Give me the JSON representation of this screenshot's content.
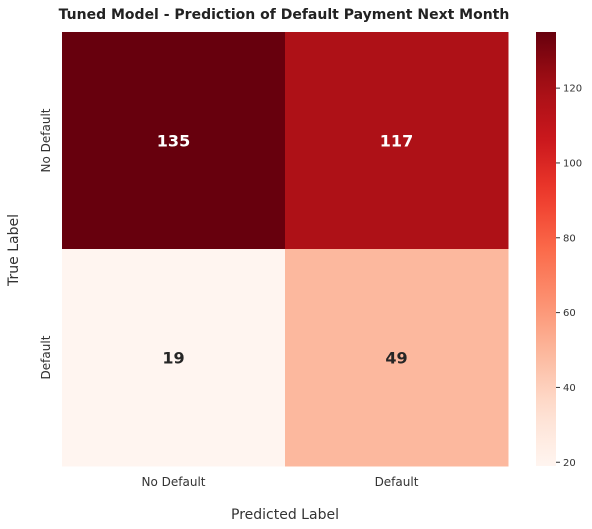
{
  "chart_data": {
    "type": "heatmap",
    "title": "Tuned Model - Prediction of Default Payment Next Month",
    "xlabel": "Predicted Label",
    "ylabel": "True Label",
    "x_categories": [
      "No Default",
      "Default"
    ],
    "y_categories": [
      "No Default",
      "Default"
    ],
    "values": [
      [
        135,
        117
      ],
      [
        19,
        49
      ]
    ],
    "colormap": "Reds",
    "color_range": [
      19,
      135
    ],
    "colorbar_ticks": [
      20,
      40,
      60,
      80,
      100,
      120
    ],
    "colorbar_position": "right",
    "grid": false
  }
}
